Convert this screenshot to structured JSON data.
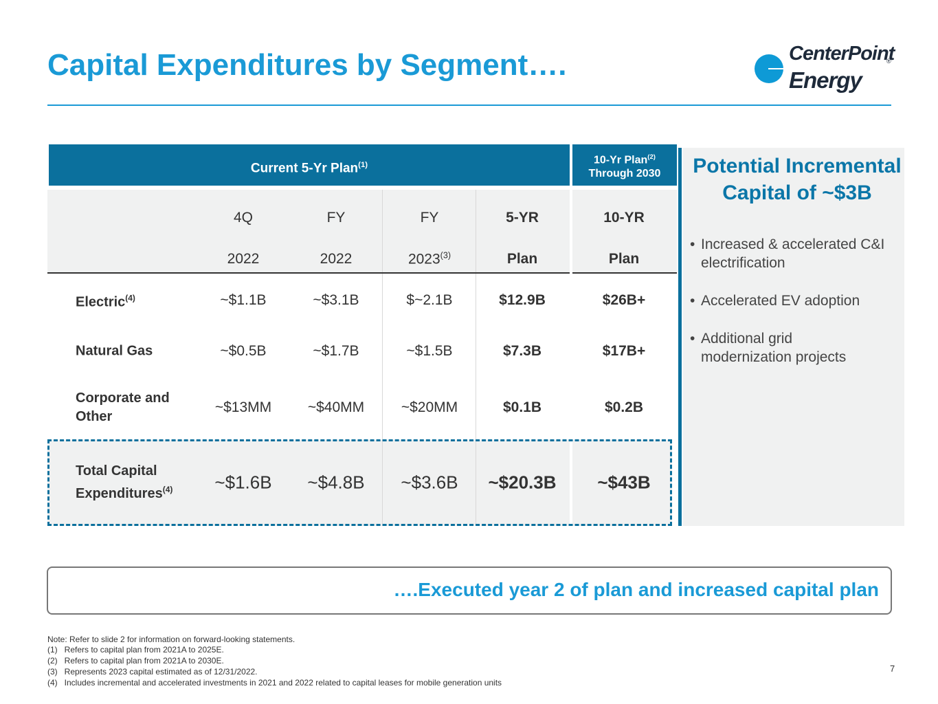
{
  "header": {
    "title": "Capital Expenditures by Segment….",
    "logo": {
      "line1": "CenterPoint",
      "line2": "Energy",
      "mark": "®"
    }
  },
  "table": {
    "groups": [
      {
        "text": "Current 5-Yr Plan",
        "sup": "(1)"
      },
      {
        "text": "10-Yr Plan",
        "sup": "(2)",
        "line2": "Through 2030"
      }
    ],
    "columns": [
      {
        "top": "4Q",
        "bottom": "2022"
      },
      {
        "top": "FY",
        "bottom": "2022"
      },
      {
        "top": "FY",
        "bottom": "2023",
        "sup": "(3)"
      },
      {
        "top": "5-YR",
        "bottom": "Plan"
      },
      {
        "top": "10-YR",
        "bottom": "Plan"
      }
    ],
    "rows": [
      {
        "label": "Electric",
        "sup": "(4)",
        "values": [
          "~$1.1B",
          "~$3.1B",
          "$~2.1B",
          "$12.9B",
          "$26B+"
        ]
      },
      {
        "label": "Natural Gas",
        "values": [
          "~$0.5B",
          "~$1.7B",
          "~$1.5B",
          "$7.3B",
          "$17B+"
        ]
      },
      {
        "label": "Corporate and Other",
        "values": [
          "~$13MM",
          "~$40MM",
          "~$20MM",
          "$0.1B",
          "$0.2B"
        ]
      },
      {
        "label": "Total Capital Expenditures",
        "sup": "(4)",
        "values": [
          "~$1.6B",
          "~$4.8B",
          "~$3.6B",
          "~$20.3B",
          "~$43B"
        ]
      }
    ]
  },
  "panel": {
    "title": "Potential Incremental Capital of ~$3B",
    "bullets": [
      "Increased & accelerated C&I electrification",
      "Accelerated EV adoption",
      "Additional grid modernization projects"
    ]
  },
  "banner": "….Executed year 2 of plan and increased capital plan",
  "notes": [
    "Note: Refer to slide 2 for information on forward-looking statements.",
    "(1)   Refers to capital plan from 2021A to 2025E.",
    "(2)   Refers to capital plan from 2021A to 2030E.",
    "(3)   Represents 2023 capital estimated as of 12/31/2022.",
    "(4)   Includes incremental and accelerated investments in 2021 and 2022 related to capital leases for mobile generation units"
  ],
  "page_number": "7"
}
